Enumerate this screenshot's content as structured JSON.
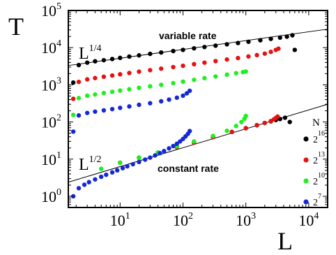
{
  "chart_data": {
    "type": "scatter",
    "title": "",
    "xlabel": "L",
    "ylabel": "T",
    "x_scale": "log",
    "y_scale": "log",
    "xlim": [
      1.5,
      20000
    ],
    "ylim": [
      0.5,
      100000
    ],
    "grid": false,
    "x_ticks": [
      {
        "value": 10,
        "base": "10",
        "exp": "1"
      },
      {
        "value": 100,
        "base": "10",
        "exp": "2"
      },
      {
        "value": 1000,
        "base": "10",
        "exp": "3"
      },
      {
        "value": 10000,
        "base": "10",
        "exp": "4"
      }
    ],
    "y_ticks": [
      {
        "value": 1,
        "base": "10",
        "exp": "0"
      },
      {
        "value": 10,
        "base": "10",
        "exp": "1"
      },
      {
        "value": 100,
        "base": "10",
        "exp": "2"
      },
      {
        "value": 1000,
        "base": "10",
        "exp": "3"
      },
      {
        "value": 10000,
        "base": "10",
        "exp": "4"
      },
      {
        "value": 100000,
        "base": "10",
        "exp": "5"
      }
    ],
    "legend": {
      "title": "N",
      "placement": "bottom-right",
      "entries": [
        {
          "series": "N16",
          "base": "2",
          "exp": "16",
          "color": "#000000"
        },
        {
          "series": "N13",
          "base": "2",
          "exp": "13",
          "color": "#e81010"
        },
        {
          "series": "N10",
          "base": "2",
          "exp": "10",
          "color": "#1ef01e"
        },
        {
          "series": "N7",
          "base": "2",
          "exp": "7",
          "color": "#1428d8"
        }
      ]
    },
    "annotations": {
      "variable_rate": "variable rate",
      "constant_rate": "constant rate",
      "slope_quarter": {
        "base": "L",
        "exp": "1/4"
      },
      "slope_half": {
        "base": "L",
        "exp": "1/2"
      }
    },
    "fit_lines": [
      {
        "id": "fit-variable-rate",
        "x": [
          1.5,
          20000
        ],
        "y": [
          3300,
          31500
        ]
      },
      {
        "id": "fit-constant-rate",
        "x": [
          1.5,
          20000
        ],
        "y": [
          2.4,
          300
        ]
      }
    ],
    "series": [
      {
        "id": "N16",
        "group": "variable",
        "color": "#000000",
        "x": [
          1.8,
          2.2,
          3,
          4,
          5.5,
          7.5,
          10,
          14,
          20,
          30,
          45,
          70,
          100,
          150,
          220,
          330,
          500,
          750,
          1100,
          1700,
          2500,
          3500,
          4500,
          5500,
          6000
        ],
        "y": [
          1150,
          3400,
          3950,
          4300,
          4600,
          4950,
          5300,
          5750,
          6200,
          6800,
          7400,
          8100,
          8700,
          9600,
          10400,
          11300,
          12300,
          13300,
          14400,
          15800,
          17200,
          18600,
          19700,
          21500,
          8700
        ]
      },
      {
        "id": "N13",
        "group": "variable",
        "color": "#e81010",
        "x": [
          1.8,
          2.2,
          3,
          4,
          5.5,
          7.5,
          10,
          14,
          20,
          30,
          45,
          70,
          100,
          150,
          220,
          330,
          500,
          750,
          1100,
          1500,
          2000,
          2500,
          3000,
          3300
        ],
        "y": [
          420,
          1200,
          1400,
          1520,
          1650,
          1780,
          1920,
          2080,
          2260,
          2480,
          2720,
          3000,
          3250,
          3600,
          3950,
          4350,
          4800,
          5250,
          5800,
          6300,
          6900,
          7700,
          8700,
          9400
        ]
      },
      {
        "id": "N10",
        "group": "variable",
        "color": "#1ef01e",
        "x": [
          1.8,
          2.2,
          3,
          4,
          5.5,
          7.5,
          10,
          14,
          20,
          30,
          45,
          70,
          100,
          150,
          220,
          330,
          500,
          700,
          900,
          1000
        ],
        "y": [
          155,
          440,
          510,
          550,
          600,
          650,
          700,
          760,
          830,
          910,
          1000,
          1110,
          1220,
          1360,
          1510,
          1680,
          1880,
          2060,
          2200,
          2280
        ]
      },
      {
        "id": "N7",
        "group": "variable",
        "color": "#1428d8",
        "x": [
          1.8,
          2.2,
          3,
          4,
          5.5,
          7.5,
          10,
          14,
          20,
          30,
          45,
          60,
          80,
          100,
          115,
          128
        ],
        "y": [
          55,
          150,
          175,
          190,
          205,
          222,
          240,
          262,
          290,
          320,
          360,
          400,
          450,
          510,
          590,
          690
        ]
      },
      {
        "id": "N16",
        "group": "constant",
        "color": "#000000",
        "x": [
          10,
          20,
          40,
          80,
          150,
          300,
          600,
          1000,
          1500,
          2000,
          2500,
          3000,
          3500,
          4200,
          5000
        ],
        "y": [
          8,
          11,
          15,
          21,
          28,
          39,
          54,
          68,
          82,
          94,
          104,
          113,
          120,
          130,
          100
        ]
      },
      {
        "id": "N13",
        "group": "constant",
        "color": "#e81010",
        "x": [
          10,
          20,
          40,
          80,
          150,
          300,
          600,
          1000,
          1500,
          2000,
          2500,
          2800,
          3000,
          3200
        ],
        "y": [
          8,
          11,
          15,
          21,
          28,
          39,
          54,
          68,
          82,
          94,
          106,
          118,
          128,
          140
        ]
      },
      {
        "id": "N10",
        "group": "constant",
        "color": "#1ef01e",
        "x": [
          5,
          10,
          20,
          40,
          80,
          150,
          300,
          500,
          700,
          850,
          950,
          1000
        ],
        "y": [
          5.5,
          8,
          11,
          15,
          22,
          30,
          42,
          58,
          78,
          100,
          122,
          145
        ]
      },
      {
        "id": "N7",
        "group": "constant",
        "color": "#1428d8",
        "x": [
          1.8,
          2.2,
          2.7,
          3.2,
          4,
          5,
          6,
          7.5,
          9,
          11,
          13,
          16,
          20,
          25,
          30,
          36,
          43,
          50,
          60,
          70,
          80,
          90,
          100,
          110,
          120,
          128
        ],
        "y": [
          1,
          1.65,
          2.05,
          2.4,
          2.85,
          3.35,
          3.8,
          4.4,
          5,
          5.7,
          6.4,
          7.3,
          8.4,
          9.7,
          11,
          12.6,
          14.5,
          16.5,
          19.5,
          22.5,
          26,
          30,
          35,
          41,
          48,
          57
        ]
      }
    ]
  }
}
